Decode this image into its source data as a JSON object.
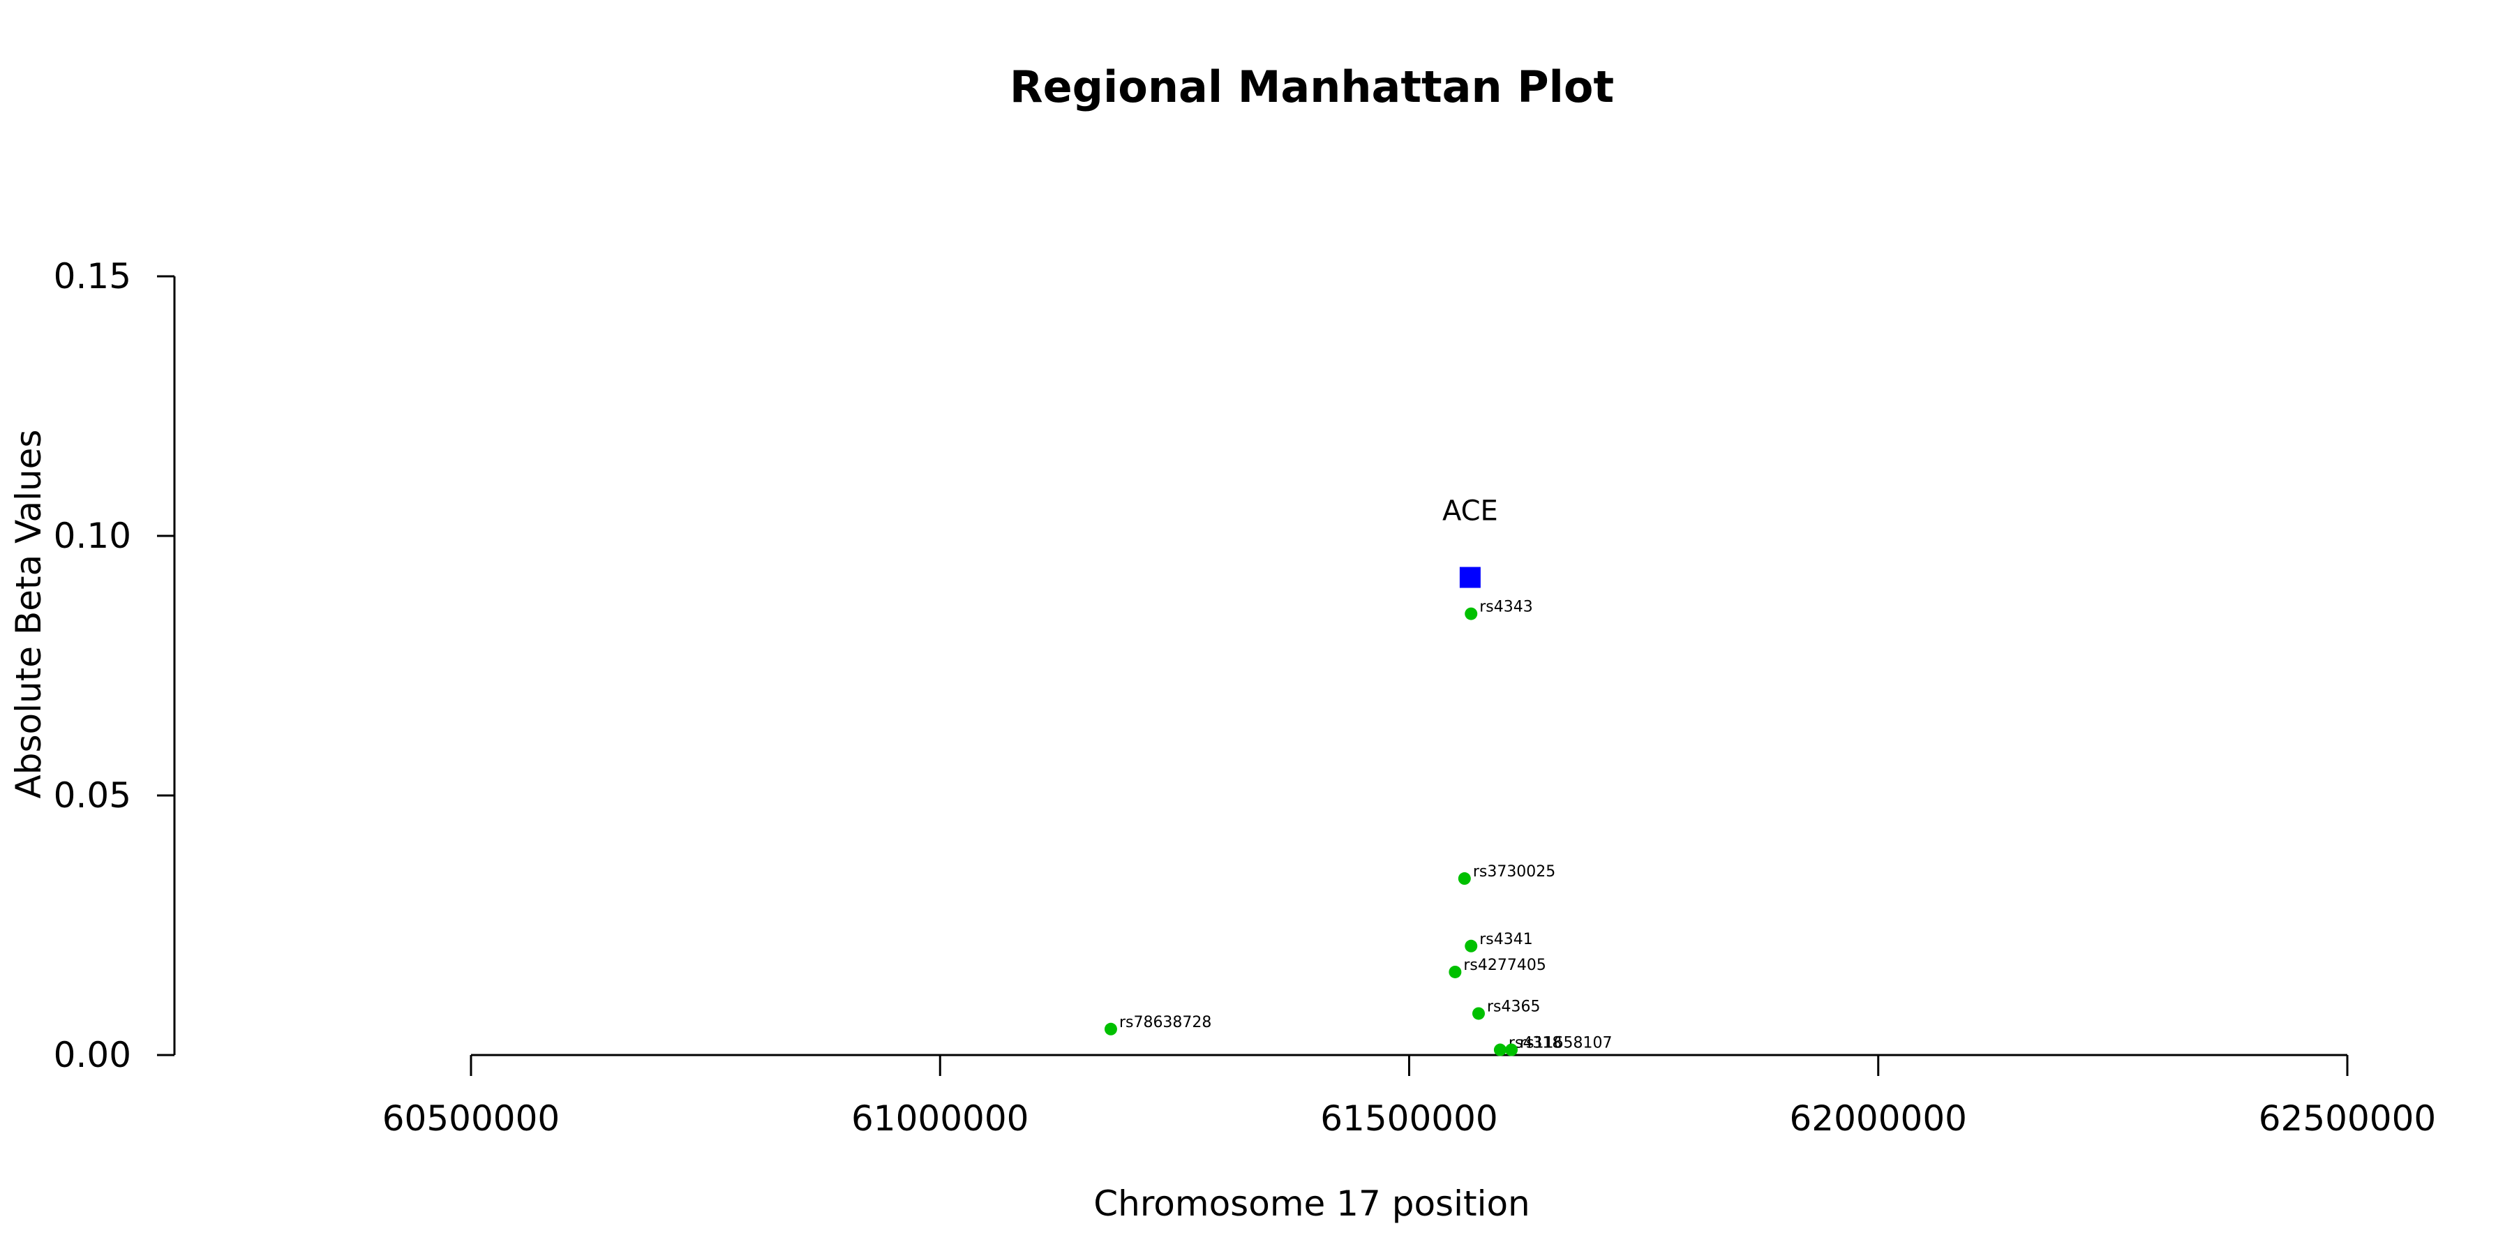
{
  "chart_data": {
    "type": "scatter",
    "title": "Regional Manhattan Plot",
    "xlabel": "Chromosome 17 position",
    "ylabel": "Absolute Beta Values",
    "xlim": [
      60500000,
      62500000
    ],
    "ylim": [
      0,
      0.15
    ],
    "x_ticks": [
      "60500000",
      "61000000",
      "61500000",
      "62000000",
      "62500000"
    ],
    "y_ticks": [
      "0.00",
      "0.05",
      "0.10",
      "0.15"
    ],
    "x_tick_values": [
      60500000,
      61000000,
      61500000,
      62000000,
      62500000
    ],
    "y_tick_values": [
      0,
      0.05,
      0.1,
      0.15
    ],
    "grid": false,
    "point_color": "#00c000",
    "gene_color": "#0000ff",
    "gene": {
      "name": "ACE",
      "x": 61565000,
      "y": 0.092
    },
    "points": [
      {
        "label": "rs4343",
        "x": 61566000,
        "y": 0.085
      },
      {
        "label": "rs3730025",
        "x": 61559000,
        "y": 0.034
      },
      {
        "label": "rs4341",
        "x": 61566000,
        "y": 0.021
      },
      {
        "label": "rs4277405",
        "x": 61549000,
        "y": 0.016
      },
      {
        "label": "rs4365",
        "x": 61574000,
        "y": 0.008
      },
      {
        "label": "rs78638728",
        "x": 61182000,
        "y": 0.005
      },
      {
        "label": "rs4318",
        "x": 61597000,
        "y": 0.001
      },
      {
        "label": "rs11658107",
        "x": 61609000,
        "y": 0.001
      }
    ]
  }
}
